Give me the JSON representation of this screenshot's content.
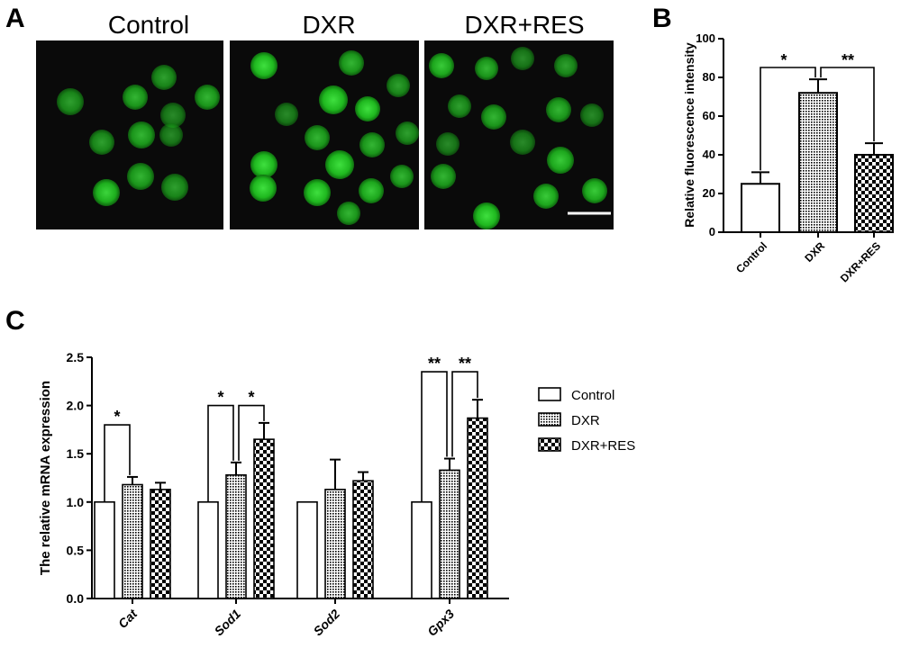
{
  "panels": {
    "a": {
      "letter": "A",
      "titles": [
        "Control",
        "DXR",
        "DXR+RES"
      ]
    },
    "b": {
      "letter": "B"
    },
    "c": {
      "letter": "C"
    }
  },
  "colors": {
    "cell_green": "#22c222",
    "background": "#0a0a0a",
    "bar_outline": "#000000",
    "scale_bar": "#ffffff"
  },
  "chart_data": [
    {
      "type": "bar",
      "categories": [
        "Control",
        "DXR",
        "DXR+RES"
      ],
      "series": [
        {
          "values": [
            25,
            72,
            40
          ],
          "errors": [
            6,
            7,
            6
          ]
        }
      ],
      "ylabel": "Relative fluorescence intensity",
      "xlabel": "",
      "ylim": [
        0,
        100
      ],
      "yticks": [
        0,
        20,
        40,
        60,
        80,
        100
      ],
      "fills": [
        "white",
        "grid",
        "checker"
      ],
      "significance": [
        {
          "from": 0,
          "to": 1,
          "label": "*"
        },
        {
          "from": 1,
          "to": 2,
          "label": "**"
        }
      ]
    },
    {
      "type": "bar",
      "categories": [
        "Cat",
        "Sod1",
        "Sod2",
        "Gpx3"
      ],
      "series": [
        {
          "name": "Control",
          "values": [
            1.0,
            1.0,
            1.0,
            1.0
          ],
          "errors": [
            0,
            0,
            0,
            0
          ],
          "fill": "white"
        },
        {
          "name": "DXR",
          "values": [
            1.18,
            1.28,
            1.13,
            1.33
          ],
          "errors": [
            0.08,
            0.13,
            0.31,
            0.12
          ],
          "fill": "grid"
        },
        {
          "name": "DXR+RES",
          "values": [
            1.13,
            1.65,
            1.22,
            1.87
          ],
          "errors": [
            0.07,
            0.17,
            0.09,
            0.19
          ],
          "fill": "checker"
        }
      ],
      "ylabel": "The relative mRNA expression",
      "xlabel": "",
      "ylim": [
        0,
        2.5
      ],
      "yticks": [
        "0.0",
        "0.5",
        "1.0",
        "1.5",
        "2.0",
        "2.5"
      ],
      "legend_position": "right",
      "significance": [
        {
          "group": 0,
          "from": 0,
          "to": 1,
          "label": "*",
          "level": 1.8
        },
        {
          "group": 1,
          "from": 0,
          "to": 1,
          "label": "*",
          "level": 2.0
        },
        {
          "group": 1,
          "from": 1,
          "to": 2,
          "label": "*",
          "level": 2.0
        },
        {
          "group": 3,
          "from": 0,
          "to": 1,
          "label": "**",
          "level": 2.35
        },
        {
          "group": 3,
          "from": 1,
          "to": 2,
          "label": "**",
          "level": 2.35
        }
      ]
    }
  ]
}
